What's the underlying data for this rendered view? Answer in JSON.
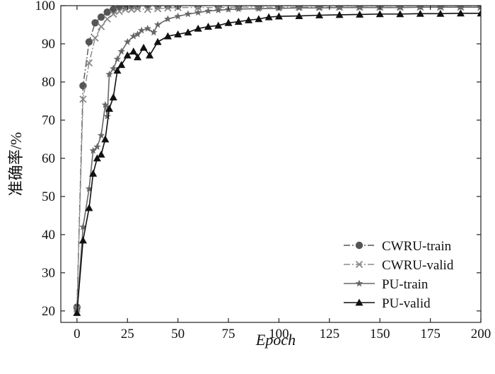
{
  "chart_data": {
    "type": "line",
    "xlabel": "Epoch",
    "ylabel": "准确率/%",
    "xlim": [
      -8,
      200
    ],
    "ylim": [
      17,
      100
    ],
    "xticks": [
      0,
      25,
      50,
      75,
      100,
      125,
      150,
      175,
      200
    ],
    "yticks": [
      20,
      30,
      40,
      50,
      60,
      70,
      80,
      90,
      100
    ],
    "grid": false,
    "legend_position": "bottom-right",
    "series": [
      {
        "name": "CWRU-train",
        "color": "#555555",
        "dash": "dashdot",
        "marker": "circle",
        "x": [
          0,
          3,
          6,
          9,
          12,
          15,
          18,
          21,
          24,
          27,
          30,
          35,
          40,
          45,
          50,
          60,
          70,
          80,
          90,
          100,
          110,
          120,
          130,
          140,
          150,
          160,
          170,
          180,
          190,
          200
        ],
        "y": [
          21,
          79,
          90.5,
          95.5,
          97,
          98.3,
          99,
          99.6,
          99.8,
          99.9,
          100,
          100,
          100,
          100,
          100,
          100,
          100,
          100,
          100,
          100,
          100,
          100,
          100,
          100,
          100,
          100,
          100,
          100,
          100,
          100
        ]
      },
      {
        "name": "CWRU-valid",
        "color": "#888888",
        "dash": "dashdot",
        "marker": "x",
        "x": [
          0,
          3,
          6,
          9,
          12,
          15,
          18,
          21,
          24,
          27,
          30,
          35,
          40,
          45,
          50,
          60,
          70,
          80,
          90,
          100,
          110,
          120,
          130,
          140,
          150,
          160,
          170,
          180,
          190,
          200
        ],
        "y": [
          20.5,
          75.5,
          85,
          91.5,
          94.5,
          96.5,
          97.8,
          98.5,
          99,
          99,
          99.2,
          99,
          99.2,
          99.4,
          99.5,
          99.5,
          99.5,
          99.6,
          99.6,
          99.6,
          99.6,
          99.6,
          99.6,
          99.6,
          99.6,
          99.6,
          99.6,
          99.6,
          99.6,
          99.6
        ]
      },
      {
        "name": "PU-train",
        "color": "#666666",
        "dash": "solid",
        "marker": "star",
        "x": [
          0,
          3,
          6,
          8,
          10,
          12,
          14,
          15,
          16,
          18,
          20,
          22,
          25,
          28,
          30,
          32,
          35,
          38,
          40,
          45,
          50,
          55,
          60,
          65,
          70,
          75,
          80,
          90,
          100,
          110,
          120,
          130,
          140,
          150,
          160,
          170,
          180,
          190,
          200
        ],
        "y": [
          20,
          42,
          52,
          62,
          63,
          66,
          74,
          71,
          82,
          83.5,
          86,
          88,
          90.5,
          92,
          92.5,
          93.5,
          94,
          93,
          95,
          96.5,
          97.2,
          97.8,
          98.2,
          98.6,
          98.8,
          99,
          99.1,
          99.2,
          99.3,
          99.4,
          99.4,
          99.5,
          99.5,
          99.5,
          99.5,
          99.6,
          99.6,
          99.6,
          99.6
        ]
      },
      {
        "name": "PU-valid",
        "color": "#111111",
        "dash": "solid",
        "marker": "triangle",
        "x": [
          0,
          3,
          6,
          8,
          10,
          12,
          14,
          16,
          18,
          20,
          22,
          25,
          28,
          30,
          33,
          36,
          40,
          45,
          50,
          55,
          60,
          65,
          70,
          75,
          80,
          85,
          90,
          95,
          100,
          110,
          120,
          130,
          140,
          150,
          160,
          170,
          180,
          190,
          200
        ],
        "y": [
          19.5,
          38.5,
          47,
          56,
          60,
          61,
          65,
          73,
          76,
          83,
          84.5,
          87,
          88,
          86.5,
          89,
          87,
          90.5,
          92,
          92.5,
          93,
          94,
          94.5,
          94.8,
          95.5,
          95.8,
          96.2,
          96.5,
          97,
          97.2,
          97.3,
          97.5,
          97.6,
          97.7,
          97.8,
          97.8,
          97.9,
          97.9,
          98,
          98
        ]
      }
    ]
  }
}
